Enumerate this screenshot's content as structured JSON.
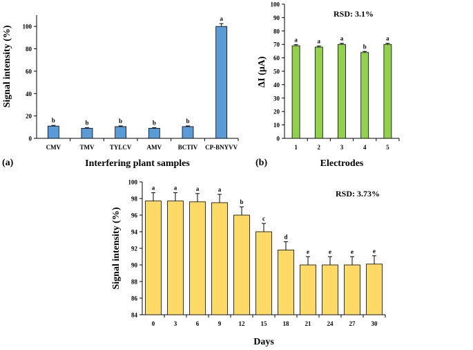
{
  "chart_data": [
    {
      "id": "a",
      "type": "bar",
      "panel_label": "(a)",
      "title": "",
      "xlabel": "Interfering plant samples",
      "ylabel": "Signal intensity (%)",
      "ylim": [
        0,
        110
      ],
      "yticks": [
        0,
        20,
        40,
        60,
        80,
        100
      ],
      "categories": [
        "CMV",
        "TMV",
        "TYLCV",
        "AMV",
        "BCTIV",
        "CP-BNYVV"
      ],
      "values": [
        11,
        9,
        10.5,
        9,
        10.5,
        100
      ],
      "errors": [
        0.6,
        0.5,
        0.6,
        0.5,
        0.6,
        2.5
      ],
      "letters": [
        "b",
        "b",
        "b",
        "b",
        "b",
        "a"
      ],
      "color": "#5b9bd5",
      "annotation": ""
    },
    {
      "id": "b",
      "type": "bar",
      "panel_label": "(b)",
      "title": "",
      "xlabel": "Electrodes",
      "ylabel": "ΔI (μA)",
      "ylim": [
        0,
        100
      ],
      "yticks": [
        0,
        10,
        20,
        30,
        40,
        50,
        60,
        70,
        80,
        90,
        100
      ],
      "categories": [
        "1",
        "2",
        "3",
        "4",
        "5"
      ],
      "values": [
        69,
        68,
        70,
        64,
        70
      ],
      "errors": [
        0.8,
        0.8,
        0.8,
        0.8,
        0.8
      ],
      "letters": [
        "a",
        "a",
        "a",
        "b",
        "a"
      ],
      "color": "#92d050",
      "annotation": "RSD: 3.1%"
    },
    {
      "id": "c",
      "type": "bar",
      "panel_label": "",
      "title": "",
      "xlabel": "Days",
      "ylabel": "Signal intensity (%)",
      "ylim": [
        84,
        100
      ],
      "yticks": [
        84,
        86,
        88,
        90,
        92,
        94,
        96,
        98,
        100
      ],
      "categories": [
        "0",
        "3",
        "6",
        "9",
        "12",
        "15",
        "18",
        "21",
        "24",
        "27",
        "30"
      ],
      "values": [
        97.7,
        97.7,
        97.6,
        97.5,
        96.0,
        94.0,
        91.8,
        90.0,
        90.0,
        90.0,
        90.1
      ],
      "errors": [
        1.0,
        1.0,
        1.0,
        1.0,
        1.0,
        1.0,
        1.0,
        1.0,
        1.0,
        1.0,
        1.0
      ],
      "letters": [
        "a",
        "a",
        "a",
        "a",
        "b",
        "c",
        "d",
        "e",
        "e",
        "e",
        "e"
      ],
      "color": "#ffd966",
      "annotation": "RSD: 3.73%"
    }
  ]
}
